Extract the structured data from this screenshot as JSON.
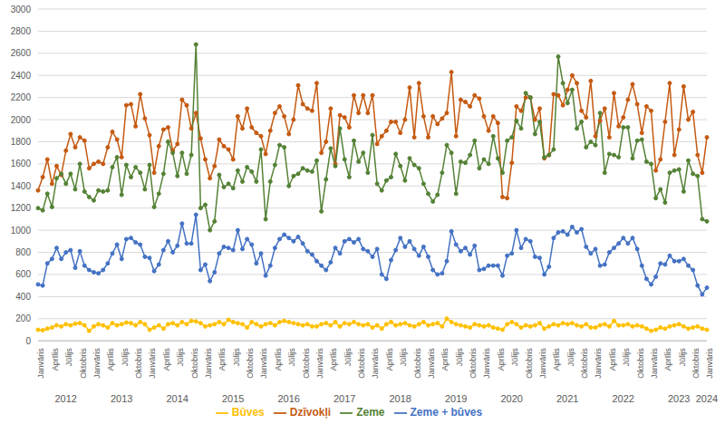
{
  "chart_data": {
    "type": "line",
    "categories": [
      "Janvāris",
      null,
      null,
      "Aprīlis",
      null,
      null,
      "Jūlijs",
      null,
      null,
      "Oktobris",
      null,
      null,
      "Janvāris",
      null,
      null,
      "Aprīlis",
      null,
      null,
      "Jūlijs",
      null,
      null,
      "Oktobris",
      null,
      null,
      "Janvāris",
      null,
      null,
      "Aprīlis",
      null,
      null,
      "Jūlijs",
      null,
      null,
      "Oktobris",
      null,
      null,
      "Janvāris",
      null,
      null,
      "Aprīlis",
      null,
      null,
      "Jūlijs",
      null,
      null,
      "Oktobris",
      null,
      null,
      "Janvāris",
      null,
      null,
      "Aprīlis",
      null,
      null,
      "Jūlijs",
      null,
      null,
      "Oktobris",
      null,
      null,
      "Janvāris",
      null,
      null,
      "Aprīlis",
      null,
      null,
      "Jūlijs",
      null,
      null,
      "Oktobris",
      null,
      null,
      "Janvāris",
      null,
      null,
      "Aprīlis",
      null,
      null,
      "Jūlijs",
      null,
      null,
      "Oktobris",
      null,
      null,
      "Janvāris",
      null,
      null,
      "Aprīlis",
      null,
      null,
      "Jūlijs",
      null,
      null,
      "Oktobris",
      null,
      null,
      "Janvāris",
      null,
      null,
      "Aprīlis",
      null,
      null,
      "Jūlijs",
      null,
      null,
      "Oktobris",
      null,
      null,
      "Janvāris",
      null,
      null,
      "Aprīlis",
      null,
      null,
      "Jūlijs",
      null,
      null,
      "Oktobris",
      null,
      null,
      "Janvāris",
      null,
      null,
      "Aprīlis",
      null,
      null,
      "Jūlijs",
      null,
      null,
      "Oktobris",
      null,
      null,
      "Janvāris",
      null,
      null,
      "Aprīlis",
      null,
      null,
      "Jūlijs",
      null,
      null,
      "Oktobris",
      null,
      null,
      "Janvāris"
    ],
    "years": [
      "2012",
      "2013",
      "2014",
      "2015",
      "2016",
      "2017",
      "2018",
      "2019",
      "2020",
      "2021",
      "2022",
      "2023",
      "2024"
    ],
    "ylim": [
      0,
      3000
    ],
    "yticks": [
      0,
      200,
      400,
      600,
      800,
      1000,
      1200,
      1400,
      1600,
      1800,
      2000,
      2200,
      2400,
      2600,
      2800,
      3000
    ],
    "grid": true,
    "legend": "bottom",
    "series": [
      {
        "name": "Dzīvokļi",
        "color": "#c55a11",
        "marker": "circle",
        "line_style": "solid",
        "values": [
          1360,
          1480,
          1640,
          1420,
          1580,
          1500,
          1720,
          1870,
          1750,
          1840,
          1810,
          1560,
          1600,
          1620,
          1600,
          1750,
          1890,
          1820,
          1660,
          2130,
          2140,
          1940,
          2230,
          2010,
          1860,
          1520,
          1760,
          1910,
          1930,
          1720,
          1780,
          2180,
          2130,
          1920,
          2060,
          1830,
          1640,
          1470,
          1580,
          1820,
          1760,
          1730,
          1640,
          2030,
          1920,
          2100,
          1930,
          1880,
          1850,
          1690,
          1900,
          2060,
          2120,
          2030,
          1870,
          2000,
          2310,
          2140,
          2100,
          2080,
          2330,
          1700,
          1800,
          2100,
          1600,
          2040,
          2020,
          1930,
          2220,
          2060,
          2220,
          2060,
          2220,
          1780,
          1850,
          1900,
          1980,
          1980,
          1880,
          2000,
          2290,
          1840,
          2330,
          2030,
          1840,
          2030,
          1960,
          2010,
          2060,
          2430,
          1850,
          2180,
          2160,
          2120,
          2220,
          2190,
          2030,
          1900,
          2030,
          1970,
          1300,
          1290,
          1610,
          2120,
          2080,
          2200,
          2200,
          2000,
          2100,
          1650,
          1680,
          2230,
          2220,
          2130,
          2270,
          2400,
          2330,
          2080,
          2020,
          2350,
          1850,
          1990,
          2100,
          1840,
          2240,
          1940,
          2020,
          2180,
          2320,
          2140,
          1880,
          2120,
          2080,
          1540,
          1640,
          1980,
          2330,
          1680,
          1910,
          2300,
          2000,
          2070,
          1680,
          1520,
          1840
        ]
      },
      {
        "name": "Zeme",
        "color": "#548235",
        "marker": "circle",
        "line_style": "solid",
        "values": [
          1200,
          1180,
          1330,
          1210,
          1470,
          1510,
          1420,
          1510,
          1370,
          1600,
          1350,
          1300,
          1270,
          1360,
          1350,
          1360,
          1570,
          1660,
          1320,
          1590,
          1480,
          1570,
          1520,
          1370,
          1590,
          1210,
          1330,
          1510,
          1800,
          1700,
          1490,
          1700,
          1510,
          1680,
          2680,
          1200,
          1230,
          1000,
          1080,
          1500,
          1390,
          1420,
          1380,
          1540,
          1440,
          1570,
          1530,
          1440,
          1730,
          1100,
          1440,
          1590,
          1770,
          1750,
          1400,
          1490,
          1510,
          1560,
          1540,
          1530,
          1630,
          1170,
          1460,
          1740,
          1580,
          1920,
          1640,
          1480,
          1810,
          1620,
          1700,
          1520,
          1860,
          1420,
          1360,
          1450,
          1480,
          1690,
          1580,
          1450,
          1650,
          1590,
          1560,
          1420,
          1330,
          1260,
          1320,
          1520,
          1770,
          1700,
          1330,
          1620,
          1610,
          1680,
          1810,
          1560,
          1640,
          1600,
          1850,
          1650,
          1520,
          1810,
          1840,
          1990,
          1920,
          2240,
          2200,
          1870,
          1980,
          1660,
          1680,
          1730,
          2570,
          2330,
          2150,
          2270,
          1920,
          1980,
          1750,
          1800,
          1770,
          2060,
          1520,
          1690,
          1680,
          1660,
          1930,
          1930,
          1650,
          1810,
          1820,
          1620,
          1600,
          1290,
          1370,
          1250,
          1520,
          1540,
          1550,
          1350,
          1630,
          1510,
          1490,
          1100,
          1080
        ]
      },
      {
        "name": "Zeme + būves",
        "color": "#4472c4",
        "marker": "circle",
        "line_style": "solid",
        "values": [
          510,
          500,
          700,
          740,
          840,
          740,
          800,
          820,
          660,
          810,
          680,
          640,
          620,
          610,
          640,
          700,
          790,
          870,
          740,
          920,
          930,
          890,
          870,
          760,
          750,
          630,
          690,
          820,
          900,
          800,
          860,
          1060,
          880,
          880,
          1140,
          640,
          690,
          540,
          620,
          790,
          850,
          840,
          820,
          1000,
          830,
          920,
          870,
          700,
          790,
          590,
          680,
          840,
          920,
          960,
          930,
          900,
          940,
          880,
          810,
          780,
          720,
          680,
          640,
          710,
          840,
          790,
          900,
          920,
          890,
          920,
          830,
          810,
          760,
          830,
          600,
          560,
          730,
          820,
          930,
          850,
          900,
          830,
          770,
          850,
          760,
          640,
          600,
          610,
          720,
          990,
          870,
          810,
          840,
          780,
          860,
          640,
          650,
          680,
          680,
          680,
          590,
          770,
          790,
          1000,
          840,
          920,
          900,
          760,
          750,
          600,
          670,
          930,
          980,
          990,
          960,
          1030,
          980,
          1010,
          850,
          790,
          830,
          680,
          690,
          800,
          840,
          880,
          930,
          880,
          930,
          830,
          680,
          560,
          510,
          580,
          700,
          690,
          770,
          720,
          720,
          740,
          680,
          640,
          500,
          420,
          480
        ]
      },
      {
        "name": "Būves",
        "color": "#ffc000",
        "marker": "circle",
        "line_style": "solid",
        "values": [
          100,
          95,
          110,
          120,
          140,
          130,
          150,
          140,
          155,
          160,
          140,
          90,
          130,
          150,
          140,
          120,
          160,
          140,
          150,
          165,
          160,
          140,
          170,
          150,
          100,
          120,
          140,
          110,
          150,
          160,
          140,
          170,
          150,
          180,
          175,
          160,
          130,
          140,
          150,
          170,
          150,
          190,
          170,
          160,
          150,
          120,
          170,
          150,
          130,
          150,
          160,
          140,
          170,
          180,
          170,
          160,
          150,
          140,
          150,
          130,
          130,
          150,
          160,
          140,
          170,
          130,
          160,
          150,
          170,
          150,
          140,
          150,
          120,
          140,
          110,
          150,
          170,
          140,
          150,
          160,
          140,
          130,
          150,
          170,
          140,
          150,
          160,
          130,
          200,
          170,
          150,
          140,
          130,
          120,
          150,
          140,
          130,
          140,
          120,
          110,
          100,
          150,
          170,
          150,
          120,
          140,
          130,
          140,
          160,
          110,
          130,
          150,
          140,
          160,
          150,
          160,
          140,
          130,
          150,
          120,
          120,
          140,
          150,
          130,
          180,
          140,
          140,
          150,
          130,
          140,
          130,
          110,
          90,
          100,
          120,
          110,
          130,
          140,
          150,
          130,
          110,
          120,
          130,
          110,
          100
        ]
      }
    ]
  }
}
